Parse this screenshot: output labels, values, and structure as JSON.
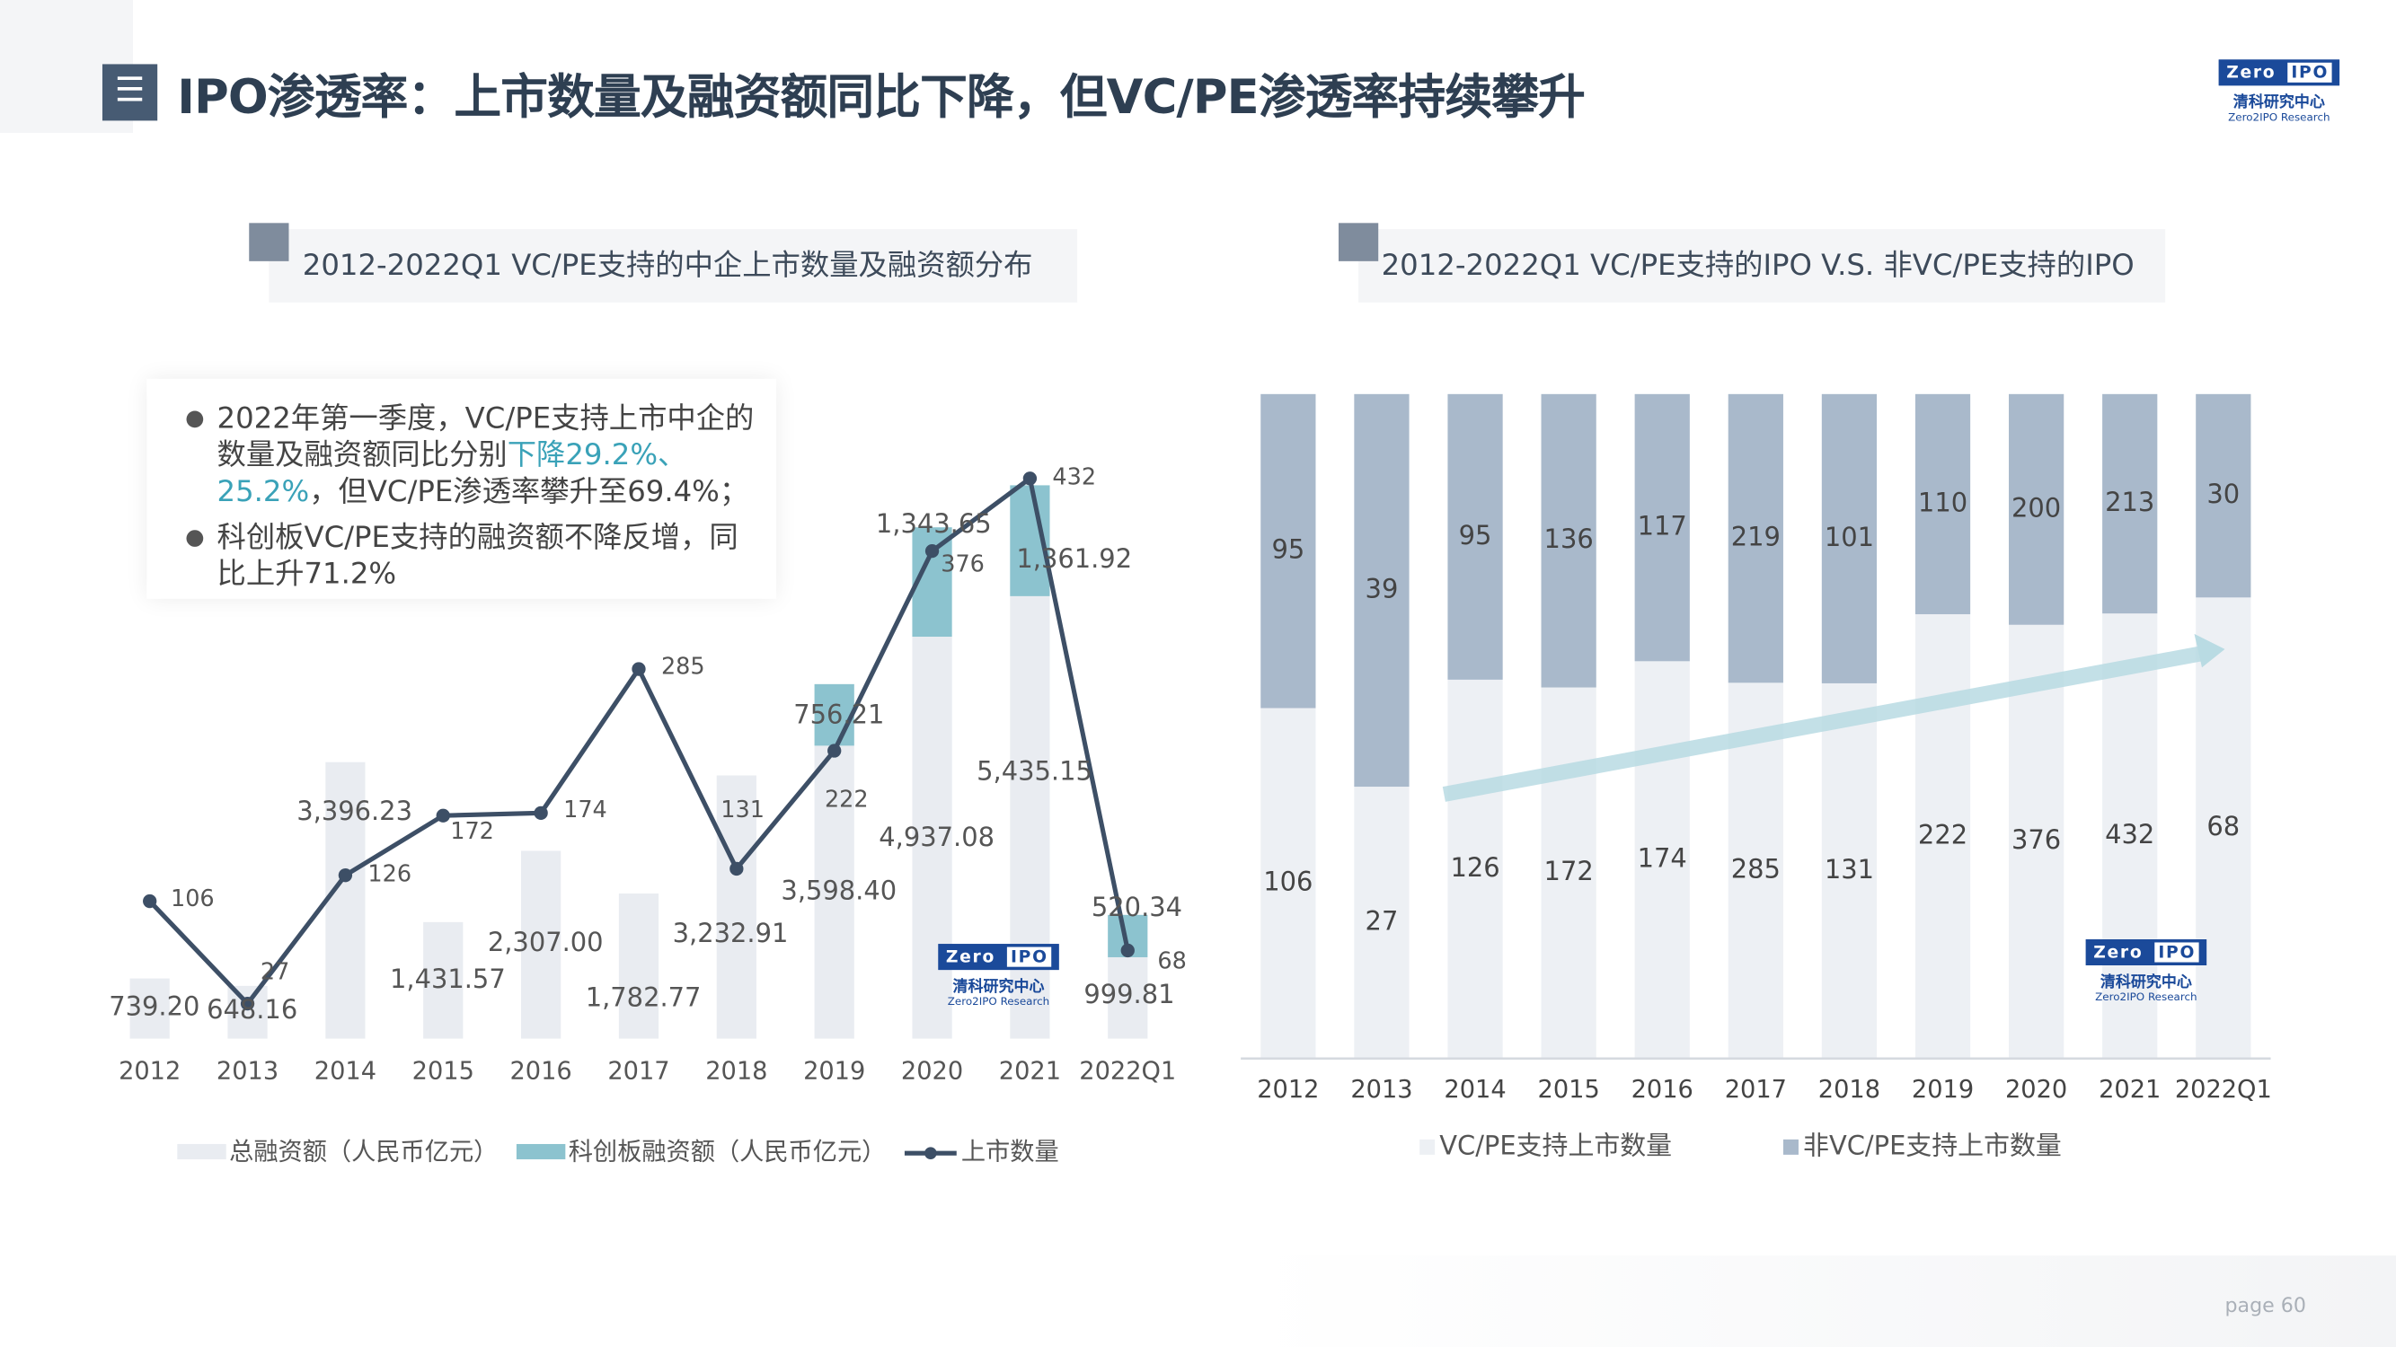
{
  "header": {
    "menu_icon": "list-icon",
    "title": "IPO渗透率：上市数量及融资额同比下降，但VC/PE渗透率持续攀升",
    "logo": {
      "top": "Zero 2 IPO",
      "cn": "清科研究中心",
      "en": "Zero2IPO Research"
    }
  },
  "left_panel": {
    "subtitle": "2012-2022Q1 VC/PE支持的中企上市数量及融资额分布"
  },
  "right_panel": {
    "subtitle": "2012-2022Q1 VC/PE支持的IPO V.S. 非VC/PE支持的IPO"
  },
  "note": {
    "bullets": [
      {
        "text_a": "2022年第一季度，VC/PE支持上市中企的数量及融资额同比分别",
        "highlight": "下降29.2%、25.2%",
        "text_b": "，但VC/PE渗透率攀升至69.4%；"
      },
      {
        "text_a": "科创板VC/PE支持的融资额不降反增，同比上升71.2%",
        "highlight": "",
        "text_b": ""
      }
    ]
  },
  "colors": {
    "total": "#e9ecf1",
    "star": "#8cc3cf",
    "line": "#3d4f66",
    "vcpe": "#edf0f4",
    "non_vcpe": "#a9b9cb",
    "arrow": "#b9dbe3",
    "highlight": "#3aa2b8"
  },
  "chart_data": [
    {
      "type": "bar+line",
      "categories": [
        "2012",
        "2013",
        "2014",
        "2015",
        "2016",
        "2017",
        "2018",
        "2019",
        "2020",
        "2021",
        "2022Q1"
      ],
      "series": [
        {
          "name": "总融资额（人民币亿元）",
          "type": "bar",
          "values": [
            739.2,
            648.16,
            3396.23,
            1431.57,
            2307.0,
            1782.77,
            3232.91,
            3598.4,
            4937.08,
            5435.15,
            999.81
          ],
          "labels": [
            "739.20",
            "648.16",
            "3,396.23",
            "1,431.57",
            "2,307.00",
            "1,782.77",
            "3,232.91",
            "3,598.40",
            "4,937.08",
            "5,435.15",
            "999.81"
          ]
        },
        {
          "name": "科创板融资额（人民币亿元）",
          "type": "stacked-bar",
          "values": [
            null,
            null,
            null,
            null,
            null,
            null,
            null,
            756.21,
            1343.65,
            1361.92,
            520.34
          ],
          "labels": [
            "",
            "",
            "",
            "",
            "",
            "",
            "",
            "756.21",
            "1,343.65",
            "1,361.92",
            "520.34"
          ]
        },
        {
          "name": "上市数量",
          "type": "line",
          "values": [
            106,
            27,
            126,
            172,
            174,
            285,
            131,
            222,
            376,
            432,
            68
          ]
        }
      ],
      "legend": "bottom",
      "grid": false
    },
    {
      "type": "stacked-bar-100",
      "categories": [
        "2012",
        "2013",
        "2014",
        "2015",
        "2016",
        "2017",
        "2018",
        "2019",
        "2020",
        "2021",
        "2022Q1"
      ],
      "series": [
        {
          "name": "VC/PE支持上市数量",
          "values": [
            106,
            27,
            126,
            172,
            174,
            285,
            131,
            222,
            376,
            432,
            68
          ]
        },
        {
          "name": "非VC/PE支持上市数量",
          "values": [
            95,
            39,
            95,
            136,
            117,
            219,
            101,
            110,
            200,
            213,
            30
          ]
        }
      ],
      "legend": "bottom",
      "grid": false,
      "annotation": "upward-trend-arrow"
    }
  ],
  "footer": {
    "page": "page  60"
  }
}
